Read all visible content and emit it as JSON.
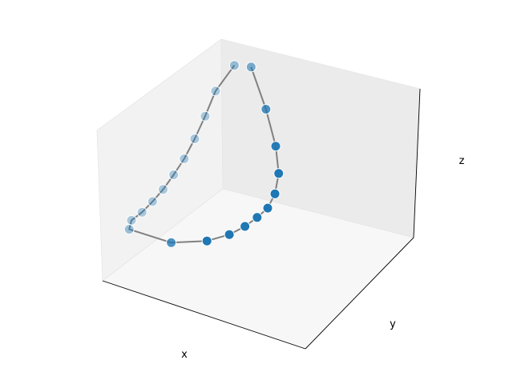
{
  "chart_data": {
    "type": "scatter",
    "projection": "3d",
    "xlabel": "x",
    "ylabel": "y",
    "zlabel": "z",
    "grid": false,
    "legend": "none",
    "ticks": "hidden",
    "connected": true,
    "marker_color": "#1f77b4",
    "line_color": "#808080",
    "pane_colors": [
      "#f2f2f2",
      "#ebebeb",
      "#f7f7f7"
    ],
    "depth_shading": true,
    "x": [
      0.0,
      0.1,
      0.2,
      0.3,
      0.4,
      0.5,
      0.6,
      0.7,
      0.8,
      0.9,
      1.0,
      1.0,
      0.9,
      0.8,
      0.7,
      0.6,
      0.5,
      0.4,
      0.3,
      0.2,
      0.1,
      0.0
    ],
    "y": [
      0.05,
      0.0,
      0.0,
      0.0,
      0.0,
      0.0,
      0.0,
      0.0,
      0.0,
      0.0,
      0.05,
      0.3,
      0.45,
      0.52,
      0.55,
      0.56,
      0.56,
      0.54,
      0.5,
      0.42,
      0.3,
      0.15
    ],
    "z": [
      0.95,
      0.8,
      0.67,
      0.56,
      0.47,
      0.41,
      0.36,
      0.33,
      0.31,
      0.31,
      0.32,
      0.3,
      0.3,
      0.31,
      0.32,
      0.33,
      0.34,
      0.38,
      0.46,
      0.58,
      0.76,
      0.97
    ]
  }
}
